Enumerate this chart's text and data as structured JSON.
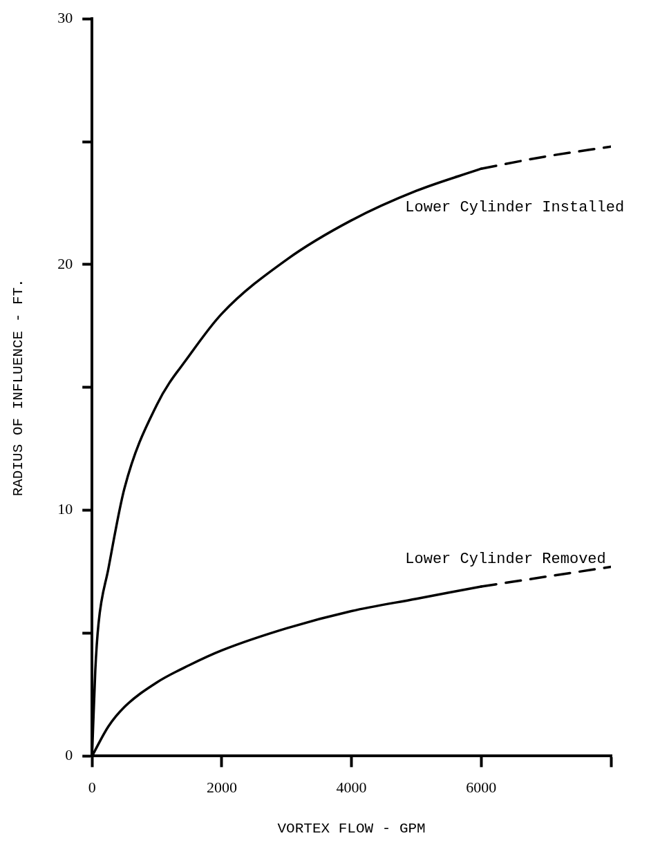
{
  "chart_data": {
    "type": "line",
    "xlabel": "VORTEX FLOW - GPM",
    "ylabel": "RADIUS OF INFLUENCE - FT.",
    "xlim": [
      0,
      8000
    ],
    "xticks": [
      0,
      2000,
      4000,
      6000,
      {
        "value": 8000,
        "label": null
      }
    ],
    "ylim": [
      0,
      30
    ],
    "yticks": [
      0,
      {
        "value": 5,
        "label": null
      },
      10,
      {
        "value": 15,
        "label": null
      },
      20,
      {
        "value": 25,
        "label": null
      },
      30
    ],
    "grid": false,
    "legend": false,
    "marker": "none",
    "series": [
      {
        "name": "Lower Cylinder Installed",
        "color": "#000000",
        "line_style": "solid",
        "x": [
          0,
          50,
          100,
          250,
          500,
          1000,
          1500,
          2000,
          3000,
          4000,
          5000,
          6000
        ],
        "values": [
          0,
          3.5,
          5.4,
          7.6,
          10.9,
          14.3,
          16.3,
          18.0,
          20.2,
          21.8,
          23.0,
          23.9
        ]
      },
      {
        "color": "#000000",
        "line_style": "dashed",
        "x": [
          6000,
          7000,
          8000
        ],
        "values": [
          23.9,
          24.4,
          24.8
        ]
      },
      {
        "name": "Lower Cylinder Removed",
        "color": "#000000",
        "line_style": "solid",
        "x": [
          0,
          250,
          500,
          1000,
          1500,
          2000,
          3000,
          4000,
          5000,
          6000
        ],
        "values": [
          0,
          1.2,
          2.0,
          3.0,
          3.7,
          4.3,
          5.2,
          5.9,
          6.4,
          6.9
        ]
      },
      {
        "color": "#000000",
        "line_style": "dashed",
        "x": [
          6000,
          7000,
          8000
        ],
        "values": [
          6.9,
          7.3,
          7.7
        ]
      }
    ]
  }
}
